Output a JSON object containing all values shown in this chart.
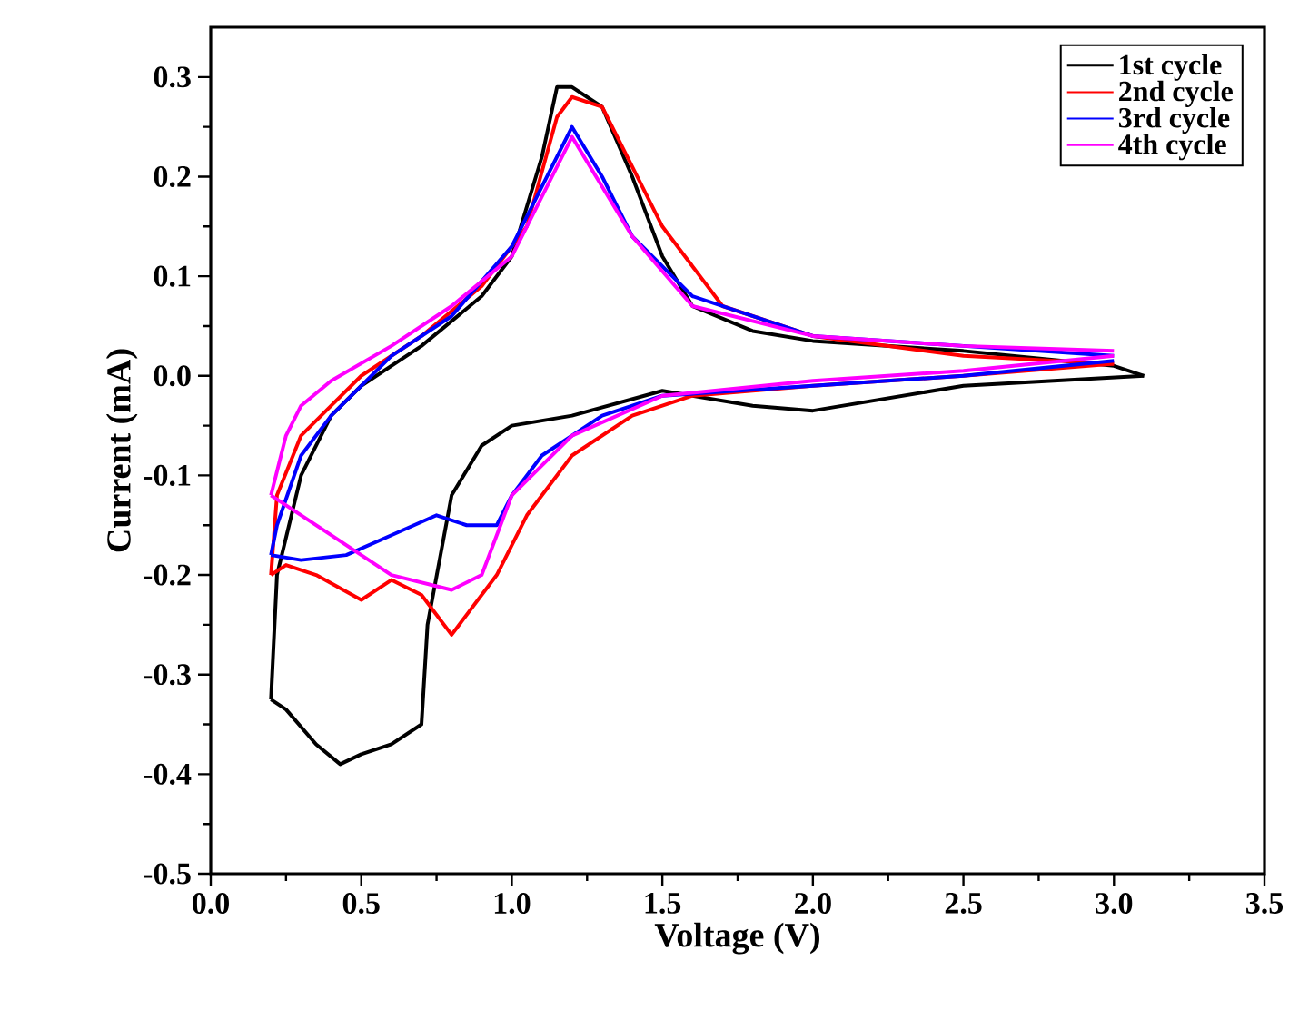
{
  "chart_data": {
    "type": "line",
    "xlabel": "Voltage (V)",
    "ylabel": "Current (mA)",
    "xlim": [
      0,
      3.5
    ],
    "ylim": [
      -0.5,
      0.35
    ],
    "xticks": [
      {
        "value": 0,
        "label": "0.0"
      },
      {
        "value": 0.5,
        "label": "0.5"
      },
      {
        "value": 1,
        "label": "1.0"
      },
      {
        "value": 1.5,
        "label": "1.5"
      },
      {
        "value": 2,
        "label": "2.0"
      },
      {
        "value": 2.5,
        "label": "2.5"
      },
      {
        "value": 3,
        "label": "3.0"
      },
      {
        "value": 3.5,
        "label": "3.5"
      }
    ],
    "yticks": [
      {
        "value": -0.5,
        "label": "-0.5"
      },
      {
        "value": -0.4,
        "label": "-0.4"
      },
      {
        "value": -0.3,
        "label": "-0.3"
      },
      {
        "value": -0.2,
        "label": "-0.2"
      },
      {
        "value": -0.1,
        "label": "-0.1"
      },
      {
        "value": 0,
        "label": "0.0"
      },
      {
        "value": 0.1,
        "label": "0.1"
      },
      {
        "value": 0.2,
        "label": "0.2"
      },
      {
        "value": 0.3,
        "label": "0.3"
      }
    ],
    "legend": "top right",
    "grid": false,
    "series": [
      {
        "name": "1st cycle",
        "color": "#000000",
        "x": [
          3.1,
          2.5,
          2.0,
          1.8,
          1.5,
          1.2,
          1.0,
          0.9,
          0.8,
          0.72,
          0.7,
          0.6,
          0.5,
          0.43,
          0.35,
          0.25,
          0.2
        ],
        "values": [
          0.0,
          -0.01,
          -0.035,
          -0.03,
          -0.015,
          -0.04,
          -0.05,
          -0.07,
          -0.12,
          -0.25,
          -0.35,
          -0.37,
          -0.38,
          -0.39,
          -0.37,
          -0.335,
          -0.325
        ]
      },
      {
        "color": "#000000",
        "x": [
          0.2,
          0.22,
          0.3,
          0.4,
          0.5,
          0.7,
          0.9,
          1.0,
          1.1,
          1.15,
          1.2,
          1.3,
          1.4,
          1.5,
          1.6,
          1.8,
          2.0,
          2.5,
          3.0,
          3.1
        ],
        "values": [
          -0.325,
          -0.2,
          -0.1,
          -0.04,
          -0.01,
          0.03,
          0.08,
          0.12,
          0.22,
          0.29,
          0.29,
          0.27,
          0.2,
          0.12,
          0.07,
          0.045,
          0.035,
          0.025,
          0.01,
          0.0
        ]
      },
      {
        "name": "2nd cycle",
        "color": "#ff0000",
        "x": [
          3.0,
          2.5,
          2.0,
          1.6,
          1.4,
          1.2,
          1.05,
          0.95,
          0.85,
          0.8,
          0.7,
          0.6,
          0.5,
          0.35,
          0.25,
          0.2
        ],
        "values": [
          0.012,
          0.0,
          -0.01,
          -0.02,
          -0.04,
          -0.08,
          -0.14,
          -0.2,
          -0.24,
          -0.26,
          -0.22,
          -0.205,
          -0.225,
          -0.2,
          -0.19,
          -0.2
        ]
      },
      {
        "color": "#ff0000",
        "x": [
          0.2,
          0.22,
          0.3,
          0.4,
          0.5,
          0.7,
          0.9,
          1.05,
          1.15,
          1.2,
          1.3,
          1.5,
          1.7,
          2.0,
          2.5,
          3.0
        ],
        "values": [
          -0.2,
          -0.12,
          -0.06,
          -0.03,
          0.0,
          0.04,
          0.09,
          0.15,
          0.26,
          0.28,
          0.27,
          0.15,
          0.07,
          0.04,
          0.02,
          0.012
        ]
      },
      {
        "name": "3rd cycle",
        "color": "#0000ff",
        "x": [
          3.0,
          2.5,
          2.0,
          1.5,
          1.3,
          1.1,
          1.0,
          0.95,
          0.85,
          0.75,
          0.6,
          0.45,
          0.3,
          0.2
        ],
        "values": [
          0.015,
          0.0,
          -0.01,
          -0.02,
          -0.04,
          -0.08,
          -0.12,
          -0.15,
          -0.15,
          -0.14,
          -0.16,
          -0.18,
          -0.185,
          -0.18
        ]
      },
      {
        "color": "#0000ff",
        "x": [
          0.2,
          0.22,
          0.3,
          0.4,
          0.6,
          0.8,
          1.0,
          1.1,
          1.2,
          1.3,
          1.4,
          1.6,
          2.0,
          2.5,
          3.0
        ],
        "values": [
          -0.18,
          -0.15,
          -0.08,
          -0.04,
          0.02,
          0.06,
          0.13,
          0.19,
          0.25,
          0.2,
          0.14,
          0.08,
          0.04,
          0.03,
          0.02
        ]
      },
      {
        "name": "4th cycle",
        "color": "#ff00ff",
        "x": [
          3.0,
          2.5,
          2.0,
          1.5,
          1.2,
          1.0,
          0.9,
          0.8,
          0.6,
          0.4,
          0.2
        ],
        "values": [
          0.02,
          0.005,
          -0.005,
          -0.02,
          -0.06,
          -0.12,
          -0.2,
          -0.215,
          -0.2,
          -0.16,
          -0.12
        ]
      },
      {
        "color": "#ff00ff",
        "x": [
          0.2,
          0.25,
          0.3,
          0.4,
          0.6,
          0.8,
          1.0,
          1.1,
          1.2,
          1.3,
          1.4,
          1.6,
          2.0,
          2.5,
          3.0
        ],
        "values": [
          -0.12,
          -0.06,
          -0.03,
          -0.005,
          0.03,
          0.07,
          0.12,
          0.18,
          0.24,
          0.19,
          0.14,
          0.07,
          0.04,
          0.03,
          0.025
        ]
      }
    ]
  }
}
